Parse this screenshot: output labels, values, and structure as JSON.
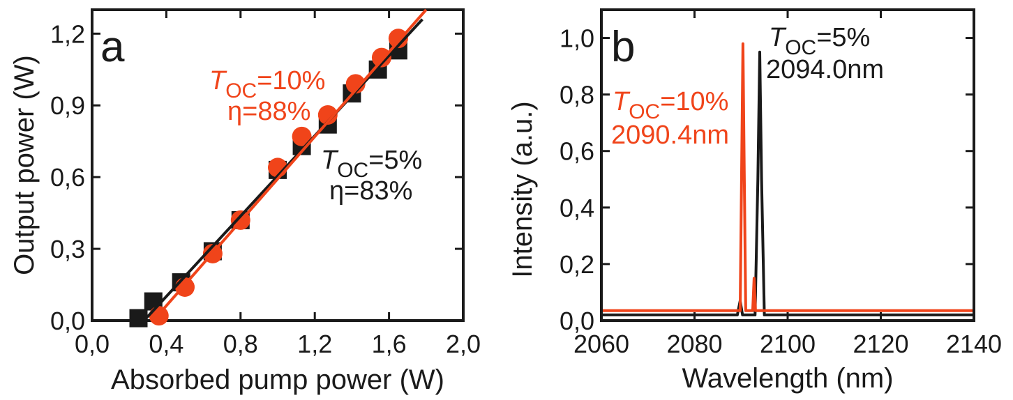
{
  "colors": {
    "black": "#1a1a1a",
    "orange": "#f0441a"
  },
  "chart_data": [
    {
      "type": "scatter",
      "panel_label": "a",
      "xlabel": "Absorbed pump power (W)",
      "ylabel": "Output power (W)",
      "xlim": [
        0.0,
        2.0
      ],
      "ylim": [
        0.0,
        1.3
      ],
      "xticks": [
        "0,0",
        "0,4",
        "0,8",
        "1,2",
        "1,6",
        "2,0"
      ],
      "yticks": [
        "0,0",
        "0,3",
        "0,6",
        "0,9",
        "1,2"
      ],
      "series": [
        {
          "color": "#1a1a1a",
          "marker": "square",
          "points": [
            [
              0.25,
              0.01
            ],
            [
              0.33,
              0.08
            ],
            [
              0.48,
              0.16
            ],
            [
              0.65,
              0.29
            ],
            [
              0.8,
              0.42
            ],
            [
              1.0,
              0.63
            ],
            [
              1.13,
              0.73
            ],
            [
              1.27,
              0.82
            ],
            [
              1.4,
              0.95
            ],
            [
              1.54,
              1.05
            ],
            [
              1.65,
              1.13
            ]
          ],
          "fit": [
            [
              0.28,
              0.0
            ],
            [
              1.78,
              1.26
            ]
          ]
        },
        {
          "color": "#f0441a",
          "marker": "circle",
          "points": [
            [
              0.36,
              0.02
            ],
            [
              0.5,
              0.14
            ],
            [
              0.65,
              0.28
            ],
            [
              0.8,
              0.42
            ],
            [
              1.0,
              0.64
            ],
            [
              1.13,
              0.77
            ],
            [
              1.27,
              0.86
            ],
            [
              1.42,
              0.99
            ],
            [
              1.56,
              1.1
            ],
            [
              1.65,
              1.18
            ]
          ],
          "fit": [
            [
              0.33,
              0.0
            ],
            [
              1.8,
              1.3
            ]
          ]
        }
      ],
      "annotations": [
        {
          "T": "T",
          "sub": "OC",
          "value": "=10%",
          "eta": "η=88%",
          "color": "#f0441a"
        },
        {
          "T": "T",
          "sub": "OC",
          "value": "=5%",
          "eta": "η=83%",
          "color": "#1a1a1a"
        }
      ]
    },
    {
      "type": "line",
      "panel_label": "b",
      "xlabel": "Wavelength (nm)",
      "ylabel": "Intensity (a.u.)",
      "xlim": [
        2060,
        2140
      ],
      "ylim": [
        0.0,
        1.1
      ],
      "xticks": [
        "2060",
        "2080",
        "2100",
        "2120",
        "2140"
      ],
      "yticks": [
        "0,0",
        "0,2",
        "0,4",
        "0,6",
        "0,8",
        "1,0"
      ],
      "series": [
        {
          "color": "#1a1a1a",
          "points": [
            [
              2060,
              0.02
            ],
            [
              2089.2,
              0.02
            ],
            [
              2089.8,
              0.07
            ],
            [
              2090.3,
              0.02
            ],
            [
              2093.0,
              0.02
            ],
            [
              2093.6,
              0.5
            ],
            [
              2094.0,
              0.95
            ],
            [
              2094.4,
              0.5
            ],
            [
              2095.0,
              0.02
            ],
            [
              2140,
              0.02
            ]
          ]
        },
        {
          "color": "#f0441a",
          "points": [
            [
              2060,
              0.035
            ],
            [
              2089.8,
              0.035
            ],
            [
              2090.1,
              0.5
            ],
            [
              2090.4,
              0.98
            ],
            [
              2090.7,
              0.5
            ],
            [
              2091.0,
              0.035
            ],
            [
              2092.5,
              0.035
            ],
            [
              2092.8,
              0.15
            ],
            [
              2093.1,
              0.035
            ],
            [
              2140,
              0.035
            ]
          ]
        }
      ],
      "annotations": [
        {
          "T": "T",
          "sub": "OC",
          "value": "=5%",
          "wl": "2094.0nm",
          "color": "#1a1a1a"
        },
        {
          "T": "T",
          "sub": "OC",
          "value": "=10%",
          "wl": "2090.4nm",
          "color": "#f0441a"
        }
      ]
    }
  ]
}
